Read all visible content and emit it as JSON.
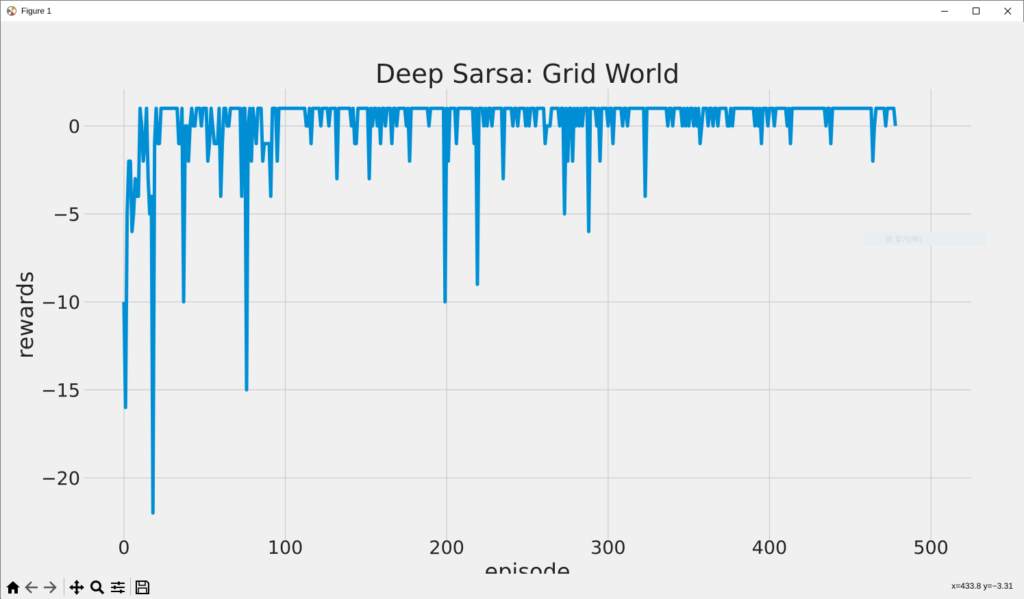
{
  "window": {
    "title": "Figure 1"
  },
  "figure": {
    "ghost_menu_label": "창 찾기(W)"
  },
  "statusbar": {
    "coords": "x=433.8 y=−3.31"
  },
  "toolbar": {
    "icons": [
      "home-icon",
      "back-icon",
      "forward-icon",
      "pan-icon",
      "zoom-icon",
      "configure-subplots-icon",
      "save-icon"
    ]
  },
  "colors": {
    "line": "#008fd5",
    "grid": "#cbcbcb",
    "background": "#f0f0f0"
  },
  "chart_data": {
    "type": "line",
    "title": "Deep Sarsa: Grid World",
    "xlabel": "episode",
    "ylabel": "rewards",
    "xlim": [
      -25,
      525
    ],
    "ylim": [
      -23.5,
      2.1
    ],
    "xticks": [
      0,
      100,
      200,
      300,
      400,
      500
    ],
    "yticks": [
      0,
      -5,
      -10,
      -15,
      -20
    ],
    "xtick_labels": [
      "0",
      "100",
      "200",
      "300",
      "400",
      "500"
    ],
    "ytick_labels": [
      "0",
      "−5",
      "−10",
      "−15",
      "−20"
    ],
    "grid": true,
    "series": [
      {
        "values": [
          -10,
          -16,
          -5,
          -2,
          -2,
          -6,
          -5,
          -3,
          -4,
          -4,
          1,
          0,
          -2,
          -1,
          1,
          -3,
          -5,
          -4,
          -22,
          -1,
          1,
          -1,
          -1,
          1,
          1,
          1,
          1,
          1,
          1,
          1,
          1,
          1,
          1,
          1,
          -1,
          -1,
          1,
          -10,
          0,
          0,
          -2,
          0,
          1,
          0,
          0,
          1,
          1,
          1,
          0,
          1,
          1,
          1,
          -2,
          -1,
          1,
          0,
          -1,
          -1,
          -1,
          1,
          -4,
          -1,
          1,
          1,
          0,
          0,
          1,
          1,
          1,
          1,
          1,
          1,
          1,
          -4,
          1,
          1,
          -15,
          0,
          1,
          -2,
          1,
          0,
          -1,
          1,
          1,
          1,
          -2,
          -1,
          -1,
          -1,
          -1,
          -4,
          1,
          1,
          1,
          -2,
          1,
          1,
          1,
          1,
          1,
          1,
          1,
          1,
          1,
          1,
          1,
          1,
          1,
          1,
          1,
          1,
          1,
          0,
          0,
          1,
          -1,
          1,
          1,
          1,
          1,
          1,
          0,
          1,
          1,
          1,
          1,
          0,
          1,
          1,
          1,
          1,
          -3,
          1,
          1,
          1,
          1,
          1,
          1,
          1,
          1,
          0,
          1,
          -1,
          -1,
          1,
          1,
          1,
          1,
          1,
          1,
          1,
          -3,
          1,
          0,
          1,
          1,
          0,
          1,
          -1,
          1,
          1,
          0,
          1,
          1,
          1,
          -1,
          1,
          1,
          0,
          1,
          1,
          1,
          1,
          1,
          0,
          1,
          -2,
          1,
          1,
          1,
          1,
          1,
          1,
          1,
          1,
          1,
          1,
          1,
          0,
          1,
          1,
          1,
          1,
          1,
          1,
          1,
          1,
          1,
          -10,
          1,
          -2,
          1,
          1,
          1,
          1,
          -1,
          1,
          1,
          1,
          1,
          1,
          1,
          1,
          1,
          1,
          1,
          -1,
          1,
          -9,
          1,
          1,
          1,
          0,
          1,
          0,
          1,
          1,
          0,
          1,
          1,
          1,
          1,
          1,
          1,
          -3,
          1,
          1,
          1,
          1,
          1,
          0,
          1,
          1,
          0,
          1,
          1,
          1,
          1,
          0,
          1,
          0,
          1,
          1,
          1,
          0,
          1,
          1,
          1,
          1,
          1,
          -1,
          0,
          0,
          0,
          1,
          1,
          1,
          1,
          1,
          0,
          1,
          1,
          -5,
          1,
          -2,
          1,
          1,
          -2,
          1,
          0,
          1,
          0,
          1,
          0,
          1,
          1,
          1,
          -6,
          1,
          1,
          1,
          1,
          0,
          1,
          -2,
          1,
          1,
          1,
          1,
          0,
          1,
          1,
          -1,
          1,
          1,
          1,
          1,
          1,
          0,
          1,
          1,
          0,
          1,
          1,
          1,
          1,
          1,
          1,
          1,
          1,
          1,
          1,
          -4,
          1,
          1,
          1,
          1,
          1,
          1,
          1,
          1,
          1,
          1,
          1,
          1,
          1,
          0,
          1,
          1,
          0,
          1,
          1,
          1,
          1,
          1,
          0,
          1,
          0,
          1,
          0,
          1,
          1,
          0,
          1,
          0,
          1,
          -1,
          0,
          1,
          1,
          1,
          0,
          1,
          1,
          0,
          1,
          1,
          0,
          1,
          1,
          1,
          1,
          1,
          0,
          0,
          1,
          0,
          1,
          1,
          1,
          1,
          1,
          1,
          1,
          1,
          1,
          1,
          1,
          1,
          1,
          0,
          1,
          0,
          1,
          -1,
          1,
          1,
          1,
          0,
          1,
          1,
          1,
          0,
          1,
          1,
          1,
          1,
          1,
          1,
          1,
          0,
          1,
          -1,
          1,
          1,
          1,
          1,
          1,
          1,
          1,
          1,
          1,
          1,
          1,
          1,
          1,
          1,
          1,
          1,
          1,
          1,
          1,
          1,
          1,
          0,
          1,
          1,
          -1,
          1,
          1,
          1,
          1,
          1,
          1,
          1,
          1,
          1,
          1,
          1,
          1,
          1,
          1,
          1,
          1,
          1,
          1,
          1,
          1,
          1,
          1,
          1,
          1,
          1,
          -2,
          0,
          1,
          1,
          1,
          1,
          1,
          1,
          0,
          1,
          1,
          1,
          1,
          1,
          0
        ]
      }
    ]
  }
}
